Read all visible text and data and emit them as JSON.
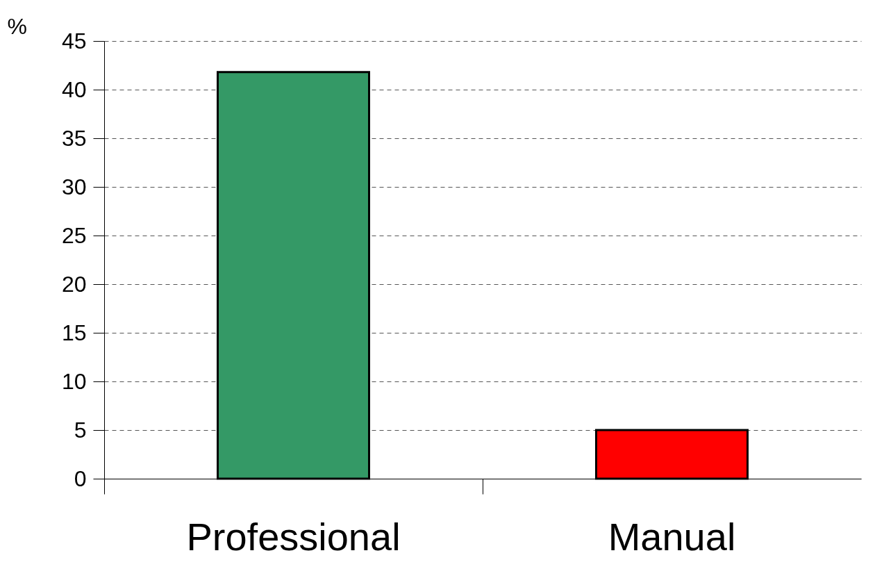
{
  "chart_data": {
    "type": "bar",
    "ylabel": "%",
    "categories": [
      "Professional",
      "Manual"
    ],
    "values": [
      41.8,
      5
    ],
    "colors": [
      "#349966",
      "#ff0000"
    ],
    "ylim": [
      0,
      45
    ],
    "yticks": [
      0,
      5,
      10,
      15,
      20,
      25,
      30,
      35,
      40,
      45
    ],
    "grid": "y"
  }
}
